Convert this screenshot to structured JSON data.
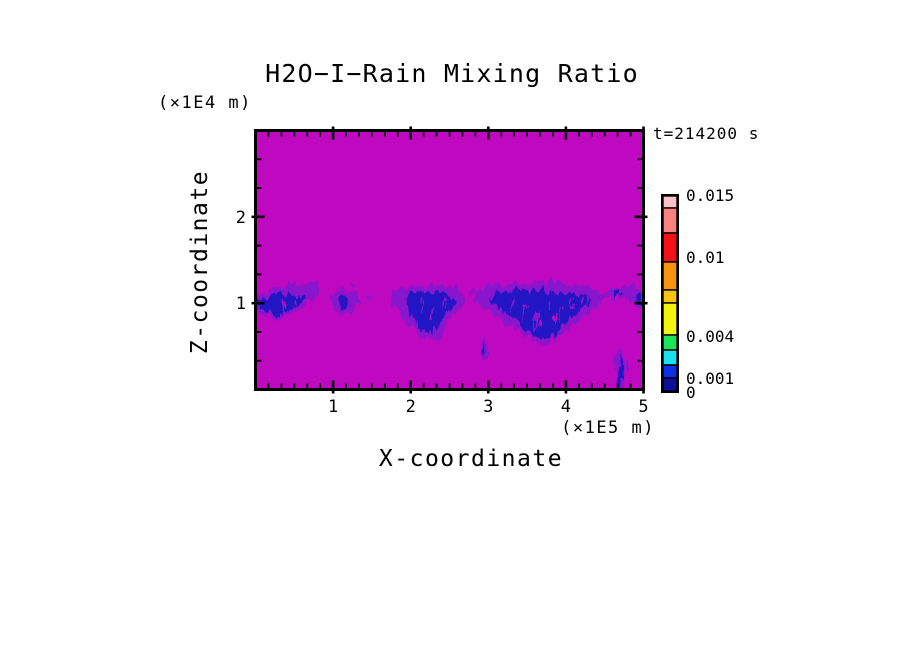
{
  "title": "H2O−I−Rain Mixing Ratio",
  "timestamp": "t=214200 s",
  "axes": {
    "x": {
      "label": "X-coordinate",
      "unit": "(×1E5 m)",
      "ticks": [
        "1",
        "2",
        "3",
        "4",
        "5"
      ]
    },
    "z": {
      "label": "Z-coordinate",
      "unit": "(×1E4 m)",
      "ticks": [
        "1",
        "2"
      ]
    }
  },
  "colorbar": {
    "labels": [
      "0.015",
      "0.01",
      "0.004",
      "0.001",
      "0"
    ],
    "segments": [
      {
        "name": "light-pink",
        "color": "#fbc2ca"
      },
      {
        "name": "salmon",
        "color": "#f8827f"
      },
      {
        "name": "red",
        "color": "#f61118"
      },
      {
        "name": "orange",
        "color": "#f9930f"
      },
      {
        "name": "amber",
        "color": "#fcc30c"
      },
      {
        "name": "yellow",
        "color": "#f2f40e"
      },
      {
        "name": "green",
        "color": "#1ae65a"
      },
      {
        "name": "cyan",
        "color": "#19dff0"
      },
      {
        "name": "blue",
        "color": "#0c2fe8"
      },
      {
        "name": "navy",
        "color": "#0e0d9a"
      }
    ]
  },
  "field_colors": {
    "background": "#be09c0",
    "fringe": "#8812cc",
    "core": "#2012c4"
  },
  "chart_data": {
    "type": "heatmap",
    "title": "H2O−I−Rain Mixing Ratio",
    "time_annotation": "t=214200 s",
    "xlabel": "X-coordinate",
    "x_unit": "×1E5 m",
    "xlim": [
      0,
      5.06
    ],
    "x_ticks": [
      1,
      2,
      3,
      4,
      5
    ],
    "ylabel": "Z-coordinate",
    "y_unit": "×1E4 m",
    "ylim": [
      0,
      3
    ],
    "y_ticks": [
      1,
      2
    ],
    "grid": false,
    "legend_position": "right",
    "colorbar_labeled_levels": [
      0,
      0.001,
      0.004,
      0.01,
      0.015
    ],
    "colorbar_colors_bottom_to_top": [
      "#0e0d9a",
      "#0c2fe8",
      "#19dff0",
      "#1ae65a",
      "#f2f40e",
      "#fcc30c",
      "#f9930f",
      "#f61118",
      "#f8827f",
      "#fbc2ca"
    ],
    "background_field": "magenta (#be09c0) = mixing ratio ~0 over most of domain",
    "rain_regions_low_band_dark_blue": [
      {
        "x_range": [
          0.0,
          0.9
        ],
        "z_range": [
          0.8,
          1.25
        ]
      },
      {
        "x_range": [
          1.0,
          1.4
        ],
        "z_range": [
          0.9,
          1.2
        ]
      },
      {
        "x_range": [
          1.8,
          2.75
        ],
        "z_range": [
          0.6,
          1.25
        ]
      },
      {
        "x_range": [
          2.9,
          3.05
        ],
        "z_range": [
          0.35,
          0.65
        ]
      },
      {
        "x_range": [
          2.9,
          4.6
        ],
        "z_range": [
          0.55,
          1.3
        ]
      },
      {
        "x_range": [
          4.6,
          5.05
        ],
        "z_range": [
          0.95,
          1.25
        ]
      },
      {
        "x_range": [
          4.68,
          4.85
        ],
        "z_range": [
          0.0,
          0.45
        ]
      }
    ]
  }
}
